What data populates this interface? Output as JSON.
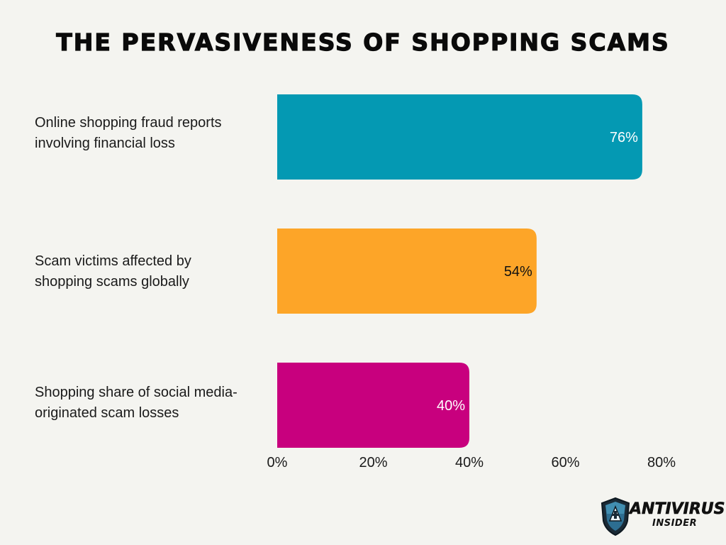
{
  "chart_data": {
    "type": "bar",
    "orientation": "horizontal",
    "title": "THE PERVASIVENESS OF SHOPPING SCAMS",
    "categories": [
      "Online shopping fraud reports involving financial loss",
      "Scam victims affected by shopping scams globally",
      "Shopping share of social media-originated scam losses"
    ],
    "category_lines": [
      [
        "Online shopping fraud reports",
        "involving financial loss"
      ],
      [
        "Scam victims affected by",
        "shopping scams globally"
      ],
      [
        "Shopping share of social media-",
        "originated scam losses"
      ]
    ],
    "values": [
      76,
      54,
      40
    ],
    "data_labels": [
      "76%",
      "54%",
      "40%"
    ],
    "colors": [
      "#0499b3",
      "#fda528",
      "#c8007e"
    ],
    "data_label_colors": [
      "#ffffff",
      "#111111",
      "#ffffff"
    ],
    "xlim": [
      0,
      80
    ],
    "xticks": [
      0,
      20,
      40,
      60,
      80
    ],
    "xtick_labels": [
      "0%",
      "20%",
      "40%",
      "60%",
      "80%"
    ],
    "grid": false,
    "xlabel": "",
    "ylabel": ""
  },
  "logo": {
    "line1": "ANTIVIRUS",
    "line2": "INSIDER",
    "shield_color": "#2d6e92"
  }
}
